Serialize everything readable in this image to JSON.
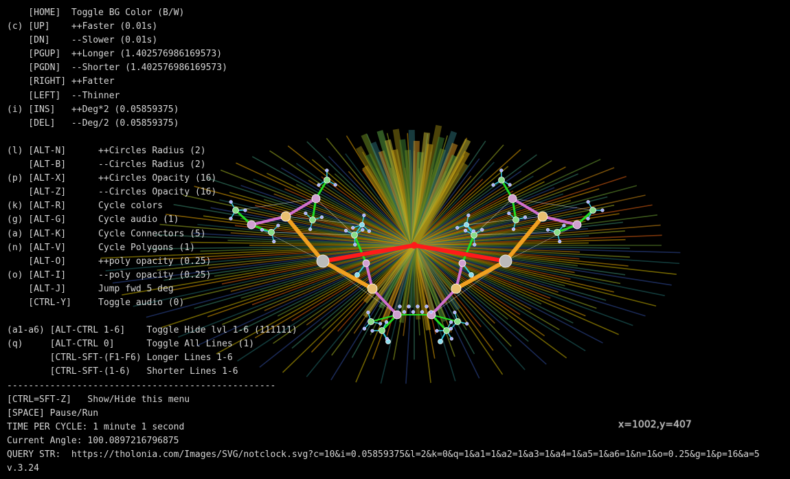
{
  "menu": {
    "lines": [
      "    [HOME]  Toggle BG Color (B/W)",
      "(c) [UP]    ++Faster (0.01s)",
      "    [DN]    --Slower (0.01s)",
      "    [PGUP]  ++Longer (1.402576986169573)",
      "    [PGDN]  --Shorter (1.402576986169573)",
      "    [RIGHT] ++Fatter",
      "    [LEFT]  --Thinner",
      "(i) [INS]   ++Deg*2 (0.05859375)",
      "    [DEL]   --Deg/2 (0.05859375)",
      "",
      "(l) [ALT-N]      ++Circles Radius (2)",
      "    [ALT-B]      --Circles Radius (2)",
      "(p) [ALT-X]      ++Circles Opacity (16)",
      "    [ALT-Z]      --Circles Opacity (16)",
      "(k) [ALT-R]      Cycle colors",
      "(g) [ALT-G]      Cycle audio (1)",
      "(a) [ALT-K]      Cycle Connectors (5)",
      "(n) [ALT-V]      Cycle Polygons (1)",
      "    [ALT-O]      ++poly opacity (0.25)",
      "(o) [ALT-I]      --poly opacity (0.25)",
      "    [ALT-J]      Jump fwd 5 deg",
      "    [CTRL-Y]     Toggle audio (0)",
      "",
      "(a1-a6) [ALT-CTRL 1-6]    Toggle Hide lvl 1-6 (111111)",
      "(q)     [ALT-CTRL 0]      Toggle All Lines (1)",
      "        [CTRL-SFT-(F1-F6) Longer Lines 1-6",
      "        [CTRL-SFT-(1-6)   Shorter Lines 1-6",
      "--------------------------------------------------",
      "[CTRL=SFT-Z]   Show/Hide this menu",
      "[SPACE] Pause/Run",
      "TIME PER CYCLE: 1 minute 1 second",
      "Current Angle: 100.0897216796875",
      "QUERY STR:  https://tholonia.com/Images/SVG/notclock.svg?c=10&i=0.05859375&l=2&k=0&q=1&a1=1&a2=1&a3=1&a4=1&a5=1&a6=1&n=1&o=0.25&g=1&p=16&a=5",
      "v.3.24"
    ]
  },
  "coord_readout": "x=1002,y=407",
  "colors": {
    "background": "#000000",
    "text": "#d6d6d6",
    "red": "#ff1a1a",
    "orange": "#f0a020",
    "magenta": "#d070d0",
    "green": "#22dd22",
    "cyan": "#33ccdd",
    "blue": "#6666ff"
  }
}
